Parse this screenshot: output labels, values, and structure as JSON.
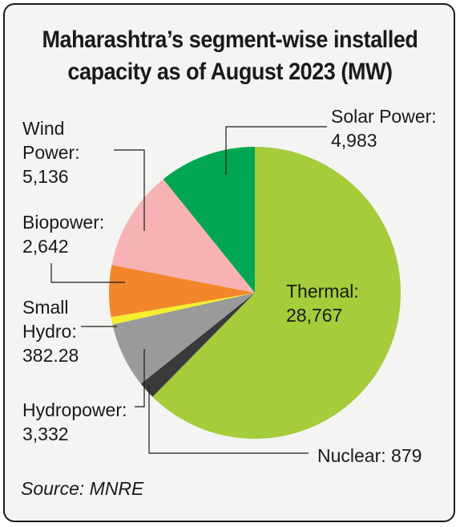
{
  "title": {
    "line1": "Maharashtra’s segment-wise installed",
    "line2": "capacity as of August 2023 (MW)"
  },
  "source": "Source: MNRE",
  "chart_data": {
    "type": "pie",
    "title": "Maharashtra’s segment-wise installed capacity as of August 2023 (MW)",
    "slices": [
      {
        "name": "Thermal",
        "value": 28767,
        "value_label": "28,767",
        "color": "#a4cc3b"
      },
      {
        "name": "Nuclear",
        "value": 879,
        "value_label": "879",
        "color": "#3a3a3a"
      },
      {
        "name": "Hydropower",
        "value": 3332,
        "value_label": "3,332",
        "color": "#9a9a9a"
      },
      {
        "name": "Small Hydro",
        "value": 382.28,
        "value_label": "382.28",
        "color": "#f3ef2e"
      },
      {
        "name": "Biopower",
        "value": 2642,
        "value_label": "2,642",
        "color": "#f2862a"
      },
      {
        "name": "Wind Power",
        "value": 5136,
        "value_label": "5,136",
        "color": "#f7b3b3"
      },
      {
        "name": "Solar Power",
        "value": 4983,
        "value_label": "4,983",
        "color": "#00a651"
      }
    ]
  },
  "labels": {
    "thermal": {
      "l1": "Thermal:",
      "l2": "28,767"
    },
    "nuclear": {
      "l1": "Nuclear: 879"
    },
    "hydropower": {
      "l1": "Hydropower:",
      "l2": "3,332"
    },
    "small_hydro": {
      "l1": "Small",
      "l2": "Hydro:",
      "l3": "382.28"
    },
    "biopower": {
      "l1": "Biopower:",
      "l2": "2,642"
    },
    "wind": {
      "l1": "Wind",
      "l2": "Power:",
      "l3": "5,136"
    },
    "solar": {
      "l1": "Solar Power:",
      "l2": "4,983"
    }
  }
}
